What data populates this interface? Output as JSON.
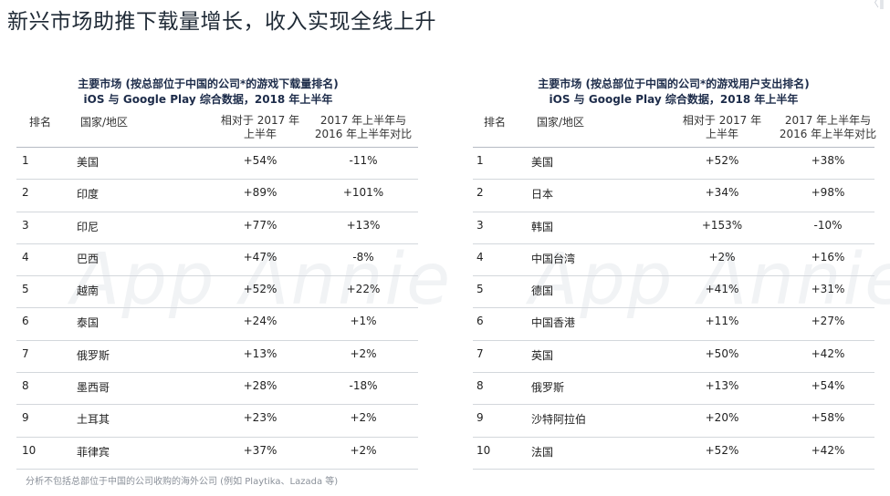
{
  "page": {
    "title": "新兴市场助推下载量增长，收入实现全线上升",
    "corner_mark": "〈‖",
    "watermark": "App Annie",
    "footnote": "分析不包括总部位于中国的公司收购的海外公司 (例如 Playtika、Lazada 等)"
  },
  "left_table": {
    "title_line1": "主要市场 (按总部位于中国的公司*的游戏下载量排名)",
    "title_line2": "iOS 与 Google Play 综合数据，2018 年上半年",
    "headers": {
      "rank": "排名",
      "country": "国家/地区",
      "h1_line1": "相对于 2017 年",
      "h1_line2": "上半年",
      "h2_line1": "2017 年上半年与",
      "h2_line2": "2016 年上半年对比"
    },
    "rows": [
      {
        "rank": "1",
        "country": "美国",
        "v1": "+54%",
        "v2": "-11%"
      },
      {
        "rank": "2",
        "country": "印度",
        "v1": "+89%",
        "v2": "+101%"
      },
      {
        "rank": "3",
        "country": "印尼",
        "v1": "+77%",
        "v2": "+13%"
      },
      {
        "rank": "4",
        "country": "巴西",
        "v1": "+47%",
        "v2": "-8%"
      },
      {
        "rank": "5",
        "country": "越南",
        "v1": "+52%",
        "v2": "+22%"
      },
      {
        "rank": "6",
        "country": "泰国",
        "v1": "+24%",
        "v2": "+1%"
      },
      {
        "rank": "7",
        "country": "俄罗斯",
        "v1": "+13%",
        "v2": "+2%"
      },
      {
        "rank": "8",
        "country": "墨西哥",
        "v1": "+28%",
        "v2": "-18%"
      },
      {
        "rank": "9",
        "country": "土耳其",
        "v1": "+23%",
        "v2": "+2%"
      },
      {
        "rank": "10",
        "country": "菲律宾",
        "v1": "+37%",
        "v2": "+2%"
      }
    ]
  },
  "right_table": {
    "title_line1": "主要市场 (按总部位于中国的公司*的游戏用户支出排名)",
    "title_line2": "iOS 与 Google Play 综合数据，2018 年上半年",
    "headers": {
      "rank": "排名",
      "country": "国家/地区",
      "h1_line1": "相对于 2017 年",
      "h1_line2": "上半年",
      "h2_line1": "2017 年上半年与",
      "h2_line2": "2016 年上半年对比"
    },
    "rows": [
      {
        "rank": "1",
        "country": "美国",
        "v1": "+52%",
        "v2": "+38%"
      },
      {
        "rank": "2",
        "country": "日本",
        "v1": "+34%",
        "v2": "+98%"
      },
      {
        "rank": "3",
        "country": "韩国",
        "v1": "+153%",
        "v2": "-10%"
      },
      {
        "rank": "4",
        "country": "中国台湾",
        "v1": "+2%",
        "v2": "+16%"
      },
      {
        "rank": "5",
        "country": "德国",
        "v1": "+41%",
        "v2": "+31%"
      },
      {
        "rank": "6",
        "country": "中国香港",
        "v1": "+11%",
        "v2": "+27%"
      },
      {
        "rank": "7",
        "country": "英国",
        "v1": "+50%",
        "v2": "+42%"
      },
      {
        "rank": "8",
        "country": "俄罗斯",
        "v1": "+13%",
        "v2": "+54%"
      },
      {
        "rank": "9",
        "country": "沙特阿拉伯",
        "v1": "+20%",
        "v2": "+58%"
      },
      {
        "rank": "10",
        "country": "法国",
        "v1": "+52%",
        "v2": "+42%"
      }
    ]
  }
}
